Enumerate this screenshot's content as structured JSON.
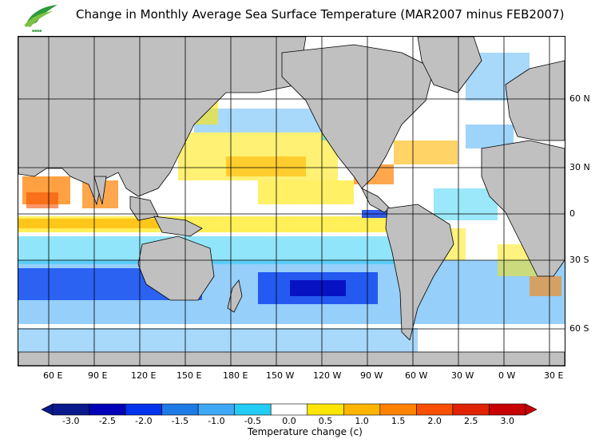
{
  "title": "Change in Monthly Average Sea Surface Temperature (MAR2007 minus FEB2007)",
  "logo": {
    "name": "logo-icon"
  },
  "map": {
    "longitude_labels": [
      "60 E",
      "90 E",
      "120 E",
      "150 E",
      "180 E",
      "150 W",
      "120 W",
      "90 W",
      "60 W",
      "30 W",
      "0 W",
      "30 E"
    ],
    "latitude_labels": [
      "60 N",
      "30 N",
      "0",
      "30 S",
      "60 S"
    ],
    "land_color": "#c0c0c0",
    "grid_color": "#000000"
  },
  "colorbar": {
    "labels": [
      "-3.0",
      "-2.5",
      "-2.0",
      "-1.5",
      "-1.0",
      "-0.5",
      "0.0",
      "0.5",
      "1.0",
      "1.5",
      "2.0",
      "2.5",
      "3.0"
    ],
    "colors": [
      "#0a1a8c",
      "#0000b8",
      "#0033ee",
      "#1e7be6",
      "#3ea8f5",
      "#22ccf5",
      "#ffffff",
      "#ffe600",
      "#ffb500",
      "#ff8200",
      "#f75000",
      "#e02300",
      "#c80000"
    ],
    "title": "Temperature change  (c)"
  }
}
